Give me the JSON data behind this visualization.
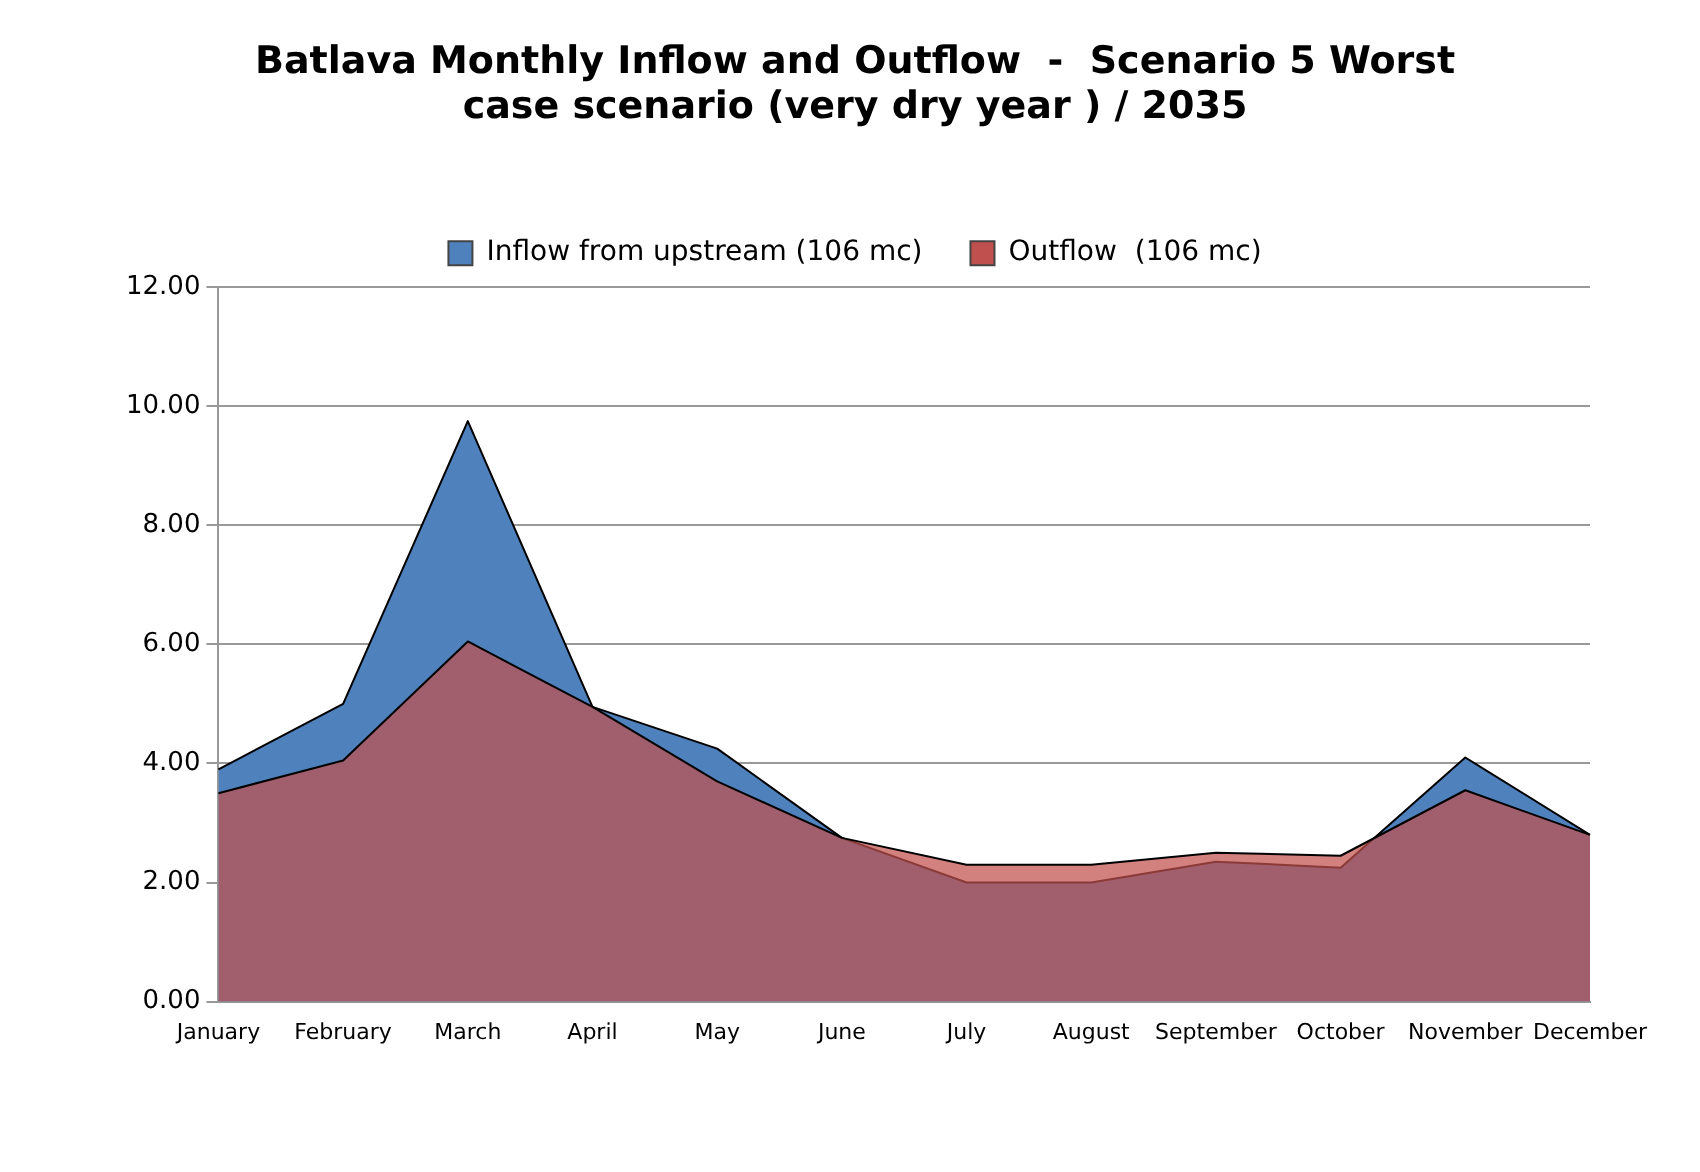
{
  "chart_data": {
    "type": "area",
    "title": "Batlava Monthly Inflow and Outflow  -  Scenario 5 Worst case scenario (very dry year ) / 2035",
    "categories": [
      "January",
      "February",
      "March",
      "April",
      "May",
      "June",
      "July",
      "August",
      "September",
      "October",
      "November",
      "December"
    ],
    "series": [
      {
        "name": "Inflow from upstream (106 mc)",
        "color": "#4f81bd",
        "values": [
          3.9,
          5.0,
          9.75,
          4.95,
          4.25,
          2.75,
          2.0,
          2.0,
          2.35,
          2.25,
          4.1,
          2.8
        ]
      },
      {
        "name": "Outflow  (106 mc)",
        "color": "#c0504d",
        "values": [
          3.5,
          4.05,
          6.05,
          4.95,
          3.7,
          2.75,
          2.3,
          2.3,
          2.5,
          2.45,
          3.55,
          2.8
        ]
      }
    ],
    "ylim": [
      0,
      12
    ],
    "yticks": [
      {
        "value": 0,
        "label": "0.00"
      },
      {
        "value": 2,
        "label": "2.00"
      },
      {
        "value": 4,
        "label": "4.00"
      },
      {
        "value": 6,
        "label": "6.00"
      },
      {
        "value": 8,
        "label": "8.00"
      },
      {
        "value": 10,
        "label": "10.00"
      },
      {
        "value": 12,
        "label": "12.00"
      }
    ],
    "grid": "y",
    "legend": "top"
  }
}
